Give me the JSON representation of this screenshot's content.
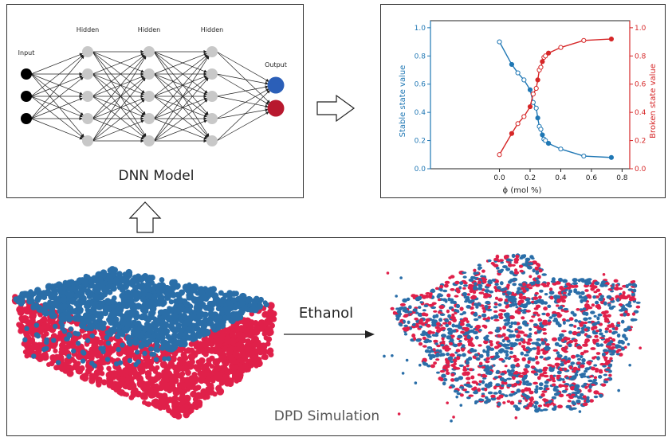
{
  "dnn": {
    "input_label": "Input",
    "hidden_labels": [
      "Hidden",
      "Hidden",
      "Hidden"
    ],
    "output_label": "Output",
    "caption": "DNN Model",
    "layers": [
      3,
      5,
      5,
      5,
      2
    ],
    "output_colors": [
      "#2b5fb8",
      "#b8182e"
    ],
    "input_color": "#000000",
    "hidden_color": "#c8c8c8"
  },
  "chart_data": {
    "type": "line",
    "xlabel": "ϕ (mol %)",
    "ylabel_left": "Stable state value",
    "ylabel_right": "Broken state value",
    "xlim": [
      -0.45,
      0.85
    ],
    "ylim": [
      0.0,
      1.05
    ],
    "x_ticks": [
      "0.0",
      "0.2",
      "0.4",
      "0.6",
      "0.8"
    ],
    "y_ticks_left": [
      "0.0",
      "0.2",
      "0.4",
      "0.6",
      "0.8",
      "1.0"
    ],
    "y_ticks_right": [
      "0.0",
      "0.2",
      "0.4",
      "0.6",
      "0.8",
      "1.0"
    ],
    "left_color": "#1f77b4",
    "right_color": "#d62728",
    "series": [
      {
        "axis": "left",
        "x": [
          0.0,
          0.08,
          0.12,
          0.16,
          0.2,
          0.22,
          0.24,
          0.25,
          0.26,
          0.27,
          0.28,
          0.29,
          0.3,
          0.32,
          0.4,
          0.55,
          0.73
        ],
        "y": [
          0.9,
          0.74,
          0.68,
          0.63,
          0.56,
          0.47,
          0.43,
          0.36,
          0.3,
          0.28,
          0.24,
          0.21,
          0.2,
          0.18,
          0.14,
          0.09,
          0.08
        ]
      },
      {
        "axis": "right",
        "x": [
          0.0,
          0.08,
          0.12,
          0.16,
          0.2,
          0.22,
          0.24,
          0.25,
          0.26,
          0.27,
          0.28,
          0.29,
          0.3,
          0.32,
          0.4,
          0.55,
          0.73
        ],
        "y": [
          0.1,
          0.25,
          0.32,
          0.37,
          0.44,
          0.53,
          0.57,
          0.63,
          0.7,
          0.72,
          0.76,
          0.79,
          0.8,
          0.82,
          0.86,
          0.91,
          0.92
        ]
      }
    ]
  },
  "simulation": {
    "arrow_label": "Ethanol",
    "caption": "DPD Simulation",
    "blue": "#2a6ea8",
    "red": "#e0204a"
  }
}
